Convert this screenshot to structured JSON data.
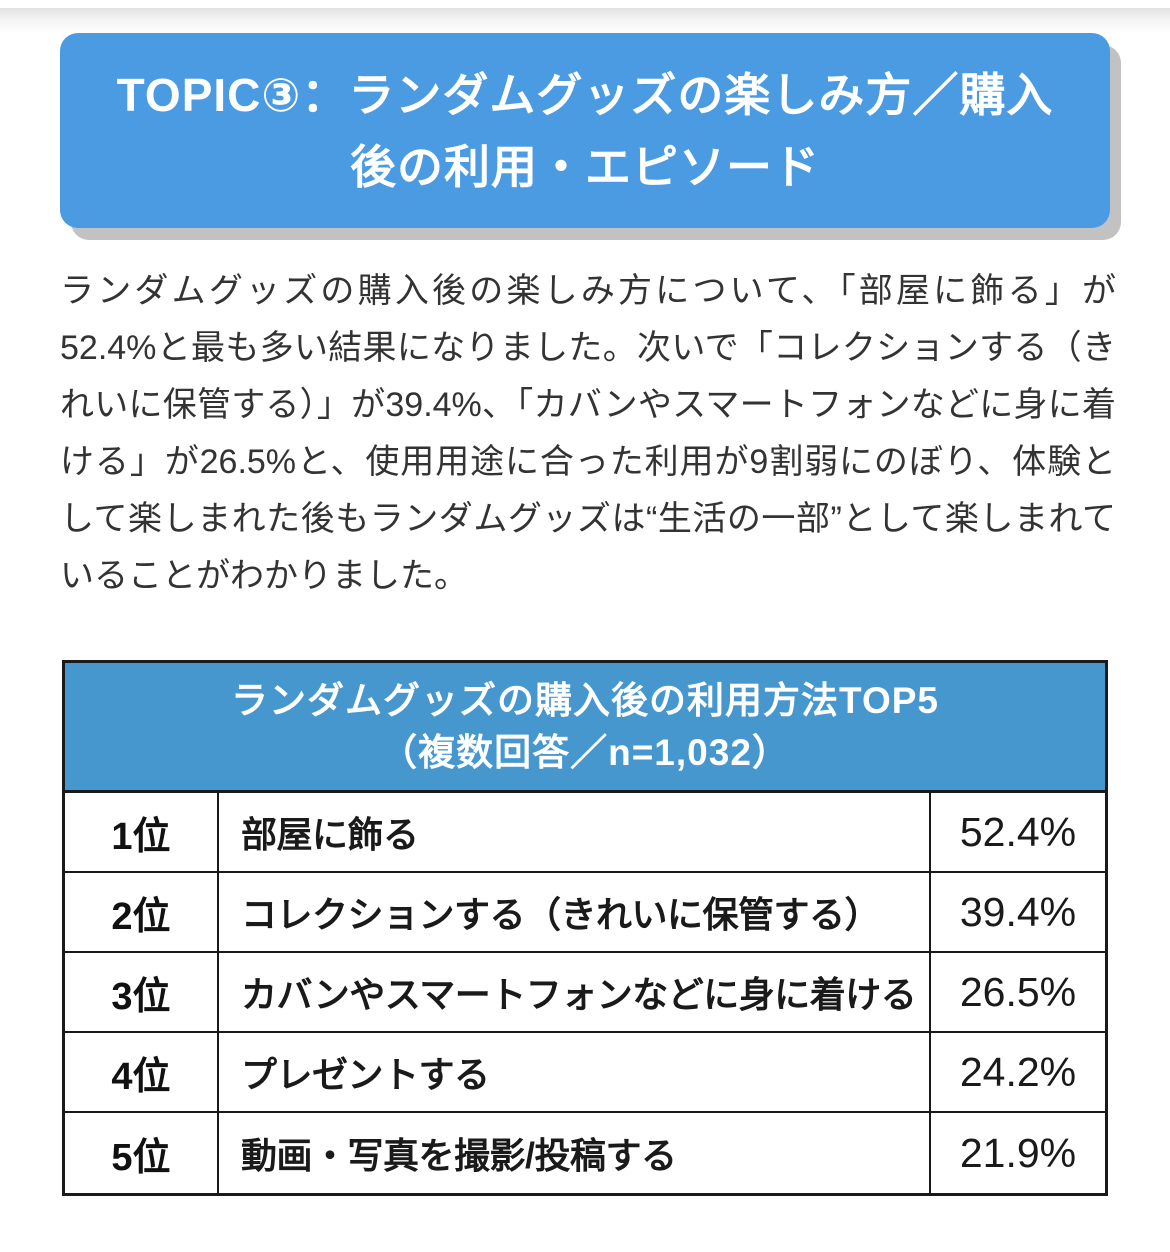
{
  "banner": {
    "title": "TOPIC③：ランダムグッズの楽しみ方／購入後の利用・エピソード",
    "bg_color": "#4a9be2",
    "shadow_color": "#c2c2c2",
    "text_color": "#ffffff"
  },
  "paragraph": "ランダムグッズの購入後の楽しみ方について、「部屋に飾る」が52.4%と最も多い結果になりました。次いで「コレクションする（きれいに保管する）」が39.4%、「カバンやスマートフォンなどに身に着ける」が26.5%と、使用用途に合った利用が9割弱にのぼり、体験として楽しまれた後もランダムグッズは“生活の一部”として楽しまれていることがわかりました。",
  "table": {
    "title_line1": "ランダムグッズの購入後の利用方法TOP5",
    "title_line2": "（複数回答／n=1,032）",
    "header_bg": "#4797cf",
    "border_color": "#1a1a1a",
    "rows": [
      {
        "rank": "1位",
        "item": "部屋に飾る",
        "value": "52.4%"
      },
      {
        "rank": "2位",
        "item": "コレクションする（きれいに保管する）",
        "value": "39.4%"
      },
      {
        "rank": "3位",
        "item": "カバンやスマートフォンなどに身に着ける",
        "value": "26.5%"
      },
      {
        "rank": "4位",
        "item": "プレゼントする",
        "value": "24.2%"
      },
      {
        "rank": "5位",
        "item": "動画・写真を撮影/投稿する",
        "value": "21.9%"
      }
    ]
  },
  "chart_data": {
    "type": "table",
    "title": "ランダムグッズの購入後の利用方法TOP5（複数回答／n=1,032）",
    "n": "1,032",
    "categories": [
      "部屋に飾る",
      "コレクションする（きれいに保管する）",
      "カバンやスマートフォンなどに身に着ける",
      "プレゼントする",
      "動画・写真を撮影/投稿する"
    ],
    "values": [
      52.4,
      39.4,
      26.5,
      24.2,
      21.9
    ],
    "unit": "%"
  }
}
